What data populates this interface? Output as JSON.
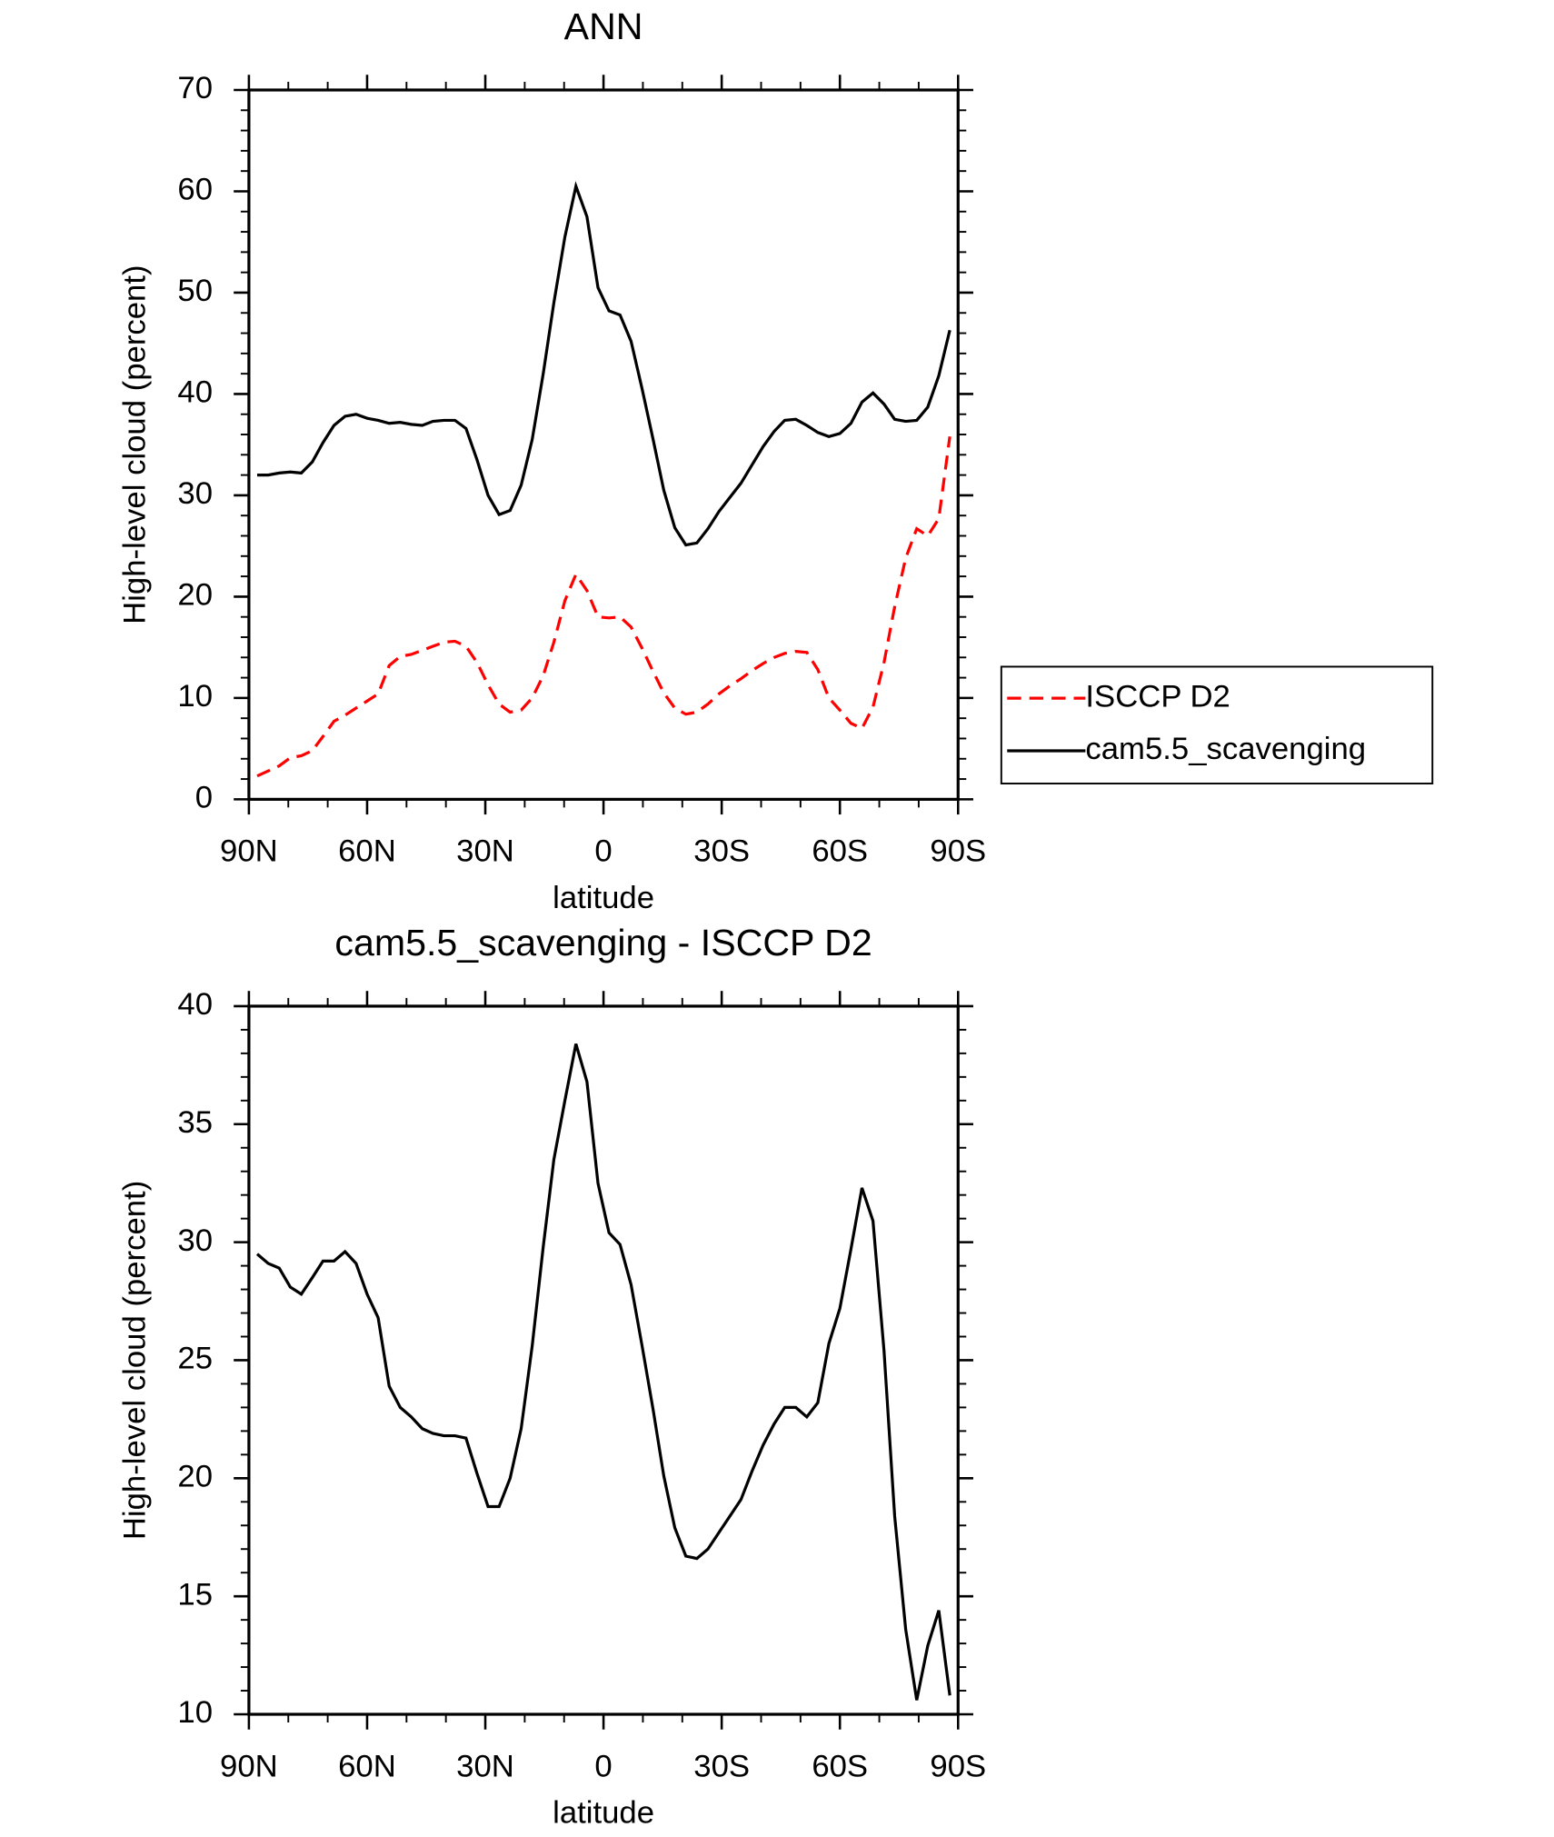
{
  "chart_data": [
    {
      "type": "line",
      "title": "ANN",
      "xlabel": "latitude",
      "ylabel": "High-level cloud (percent)",
      "x": [
        87.9,
        85.1,
        82.3,
        79.5,
        76.7,
        73.9,
        71.2,
        68.4,
        65.6,
        62.8,
        60,
        57.2,
        54.4,
        51.6,
        48.8,
        46,
        43.3,
        40.5,
        37.7,
        34.9,
        32.1,
        29.3,
        26.5,
        23.7,
        20.9,
        18.1,
        15.3,
        12.6,
        9.8,
        7,
        4.2,
        1.4,
        -1.4,
        -4.2,
        -7,
        -9.8,
        -12.6,
        -15.3,
        -18.1,
        -20.9,
        -23.7,
        -26.5,
        -29.3,
        -32.1,
        -34.9,
        -37.7,
        -40.5,
        -43.3,
        -46,
        -48.8,
        -51.6,
        -54.4,
        -57.2,
        -60,
        -62.8,
        -65.6,
        -68.4,
        -71.2,
        -73.9,
        -76.7,
        -79.5,
        -82.3,
        -85.1,
        -87.9
      ],
      "series": [
        {
          "name": "ISCCP D2",
          "color": "#ff0000",
          "dash": "dashed",
          "values": [
            2.3,
            2.8,
            3.3,
            4.1,
            4.3,
            4.8,
            6.2,
            7.7,
            8.3,
            9,
            9.7,
            10.4,
            13.2,
            14.1,
            14.3,
            14.7,
            15.1,
            15.5,
            15.6,
            15.1,
            13.5,
            11.3,
            9.4,
            8.6,
            8.8,
            10,
            12.2,
            15.5,
            19.6,
            22.2,
            20.6,
            18,
            17.9,
            18,
            17,
            14.9,
            12.6,
            10.5,
            9,
            8.4,
            8.6,
            9.4,
            10.4,
            11.2,
            11.9,
            12.7,
            13.4,
            14,
            14.4,
            14.6,
            14.5,
            12.8,
            10,
            8.8,
            7.5,
            7,
            9.1,
            13.5,
            19,
            23.8,
            26.7,
            26,
            27.7,
            35.8
          ]
        },
        {
          "name": "cam5.5_scavenging",
          "color": "#000000",
          "dash": "solid",
          "values": [
            32,
            32,
            32.2,
            32.3,
            32.2,
            33.3,
            35.2,
            36.9,
            37.8,
            38,
            37.6,
            37.4,
            37.1,
            37.2,
            37,
            36.9,
            37.3,
            37.4,
            37.4,
            36.6,
            33.5,
            30,
            28.1,
            28.5,
            31,
            35.5,
            42,
            49,
            55.5,
            60.5,
            57.5,
            50.5,
            48.2,
            47.8,
            45.2,
            40.5,
            35.5,
            30.5,
            26.8,
            25.1,
            25.3,
            26.7,
            28.4,
            29.8,
            31.2,
            33,
            34.8,
            36.3,
            37.4,
            37.5,
            36.9,
            36.2,
            35.8,
            36.1,
            37.1,
            39.2,
            40.1,
            39,
            37.5,
            37.3,
            37.4,
            38.7,
            41.8,
            46.3
          ]
        }
      ],
      "xlim": [
        90,
        -90
      ],
      "xticks": [
        {
          "value": 90,
          "label": "90N"
        },
        {
          "value": 60,
          "label": "60N"
        },
        {
          "value": 30,
          "label": "30N"
        },
        0,
        {
          "value": -30,
          "label": "30S"
        },
        {
          "value": -60,
          "label": "60S"
        },
        {
          "value": -90,
          "label": "90S"
        }
      ],
      "ylim": [
        0,
        70
      ],
      "yticks": [
        0,
        10,
        20,
        30,
        40,
        50,
        60,
        70
      ],
      "legend": "right"
    },
    {
      "type": "line",
      "title": "cam5.5_scavenging - ISCCP D2",
      "xlabel": "latitude",
      "ylabel": "High-level cloud (percent)",
      "x": [
        87.9,
        85.1,
        82.3,
        79.5,
        76.7,
        73.9,
        71.2,
        68.4,
        65.6,
        62.8,
        60,
        57.2,
        54.4,
        51.6,
        48.8,
        46,
        43.3,
        40.5,
        37.7,
        34.9,
        32.1,
        29.3,
        26.5,
        23.7,
        20.9,
        18.1,
        15.3,
        12.6,
        9.8,
        7,
        4.2,
        1.4,
        -1.4,
        -4.2,
        -7,
        -9.8,
        -12.6,
        -15.3,
        -18.1,
        -20.9,
        -23.7,
        -26.5,
        -29.3,
        -32.1,
        -34.9,
        -37.7,
        -40.5,
        -43.3,
        -46,
        -48.8,
        -51.6,
        -54.4,
        -57.2,
        -60,
        -62.8,
        -65.6,
        -68.4,
        -71.2,
        -73.9,
        -76.7,
        -79.5,
        -82.3,
        -85.1,
        -87.9
      ],
      "series": [
        {
          "color": "#000000",
          "dash": "solid",
          "values": [
            29.5,
            29.1,
            28.9,
            28.1,
            27.8,
            28.5,
            29.2,
            29.2,
            29.6,
            29.1,
            27.8,
            26.8,
            23.9,
            23,
            22.6,
            22.1,
            21.9,
            21.8,
            21.8,
            21.7,
            20.2,
            18.8,
            18.8,
            20,
            22.1,
            25.6,
            29.8,
            33.5,
            36,
            38.4,
            36.8,
            32.5,
            30.4,
            29.9,
            28.2,
            25.6,
            22.9,
            20.1,
            17.9,
            16.7,
            16.6,
            17,
            17.7,
            18.4,
            19.1,
            20.3,
            21.4,
            22.3,
            23,
            23,
            22.6,
            23.2,
            25.7,
            27.2,
            29.7,
            32.3,
            30.9,
            25.4,
            18.4,
            13.6,
            10.6,
            12.9,
            14.4,
            10.8
          ]
        }
      ],
      "xlim": [
        90,
        -90
      ],
      "xticks": [
        {
          "value": 90,
          "label": "90N"
        },
        {
          "value": 60,
          "label": "60N"
        },
        {
          "value": 30,
          "label": "30N"
        },
        0,
        {
          "value": -30,
          "label": "30S"
        },
        {
          "value": -60,
          "label": "60S"
        },
        {
          "value": -90,
          "label": "90S"
        }
      ],
      "ylim": [
        10,
        40
      ],
      "yticks": [
        10,
        15,
        20,
        25,
        30,
        35,
        40
      ]
    }
  ]
}
